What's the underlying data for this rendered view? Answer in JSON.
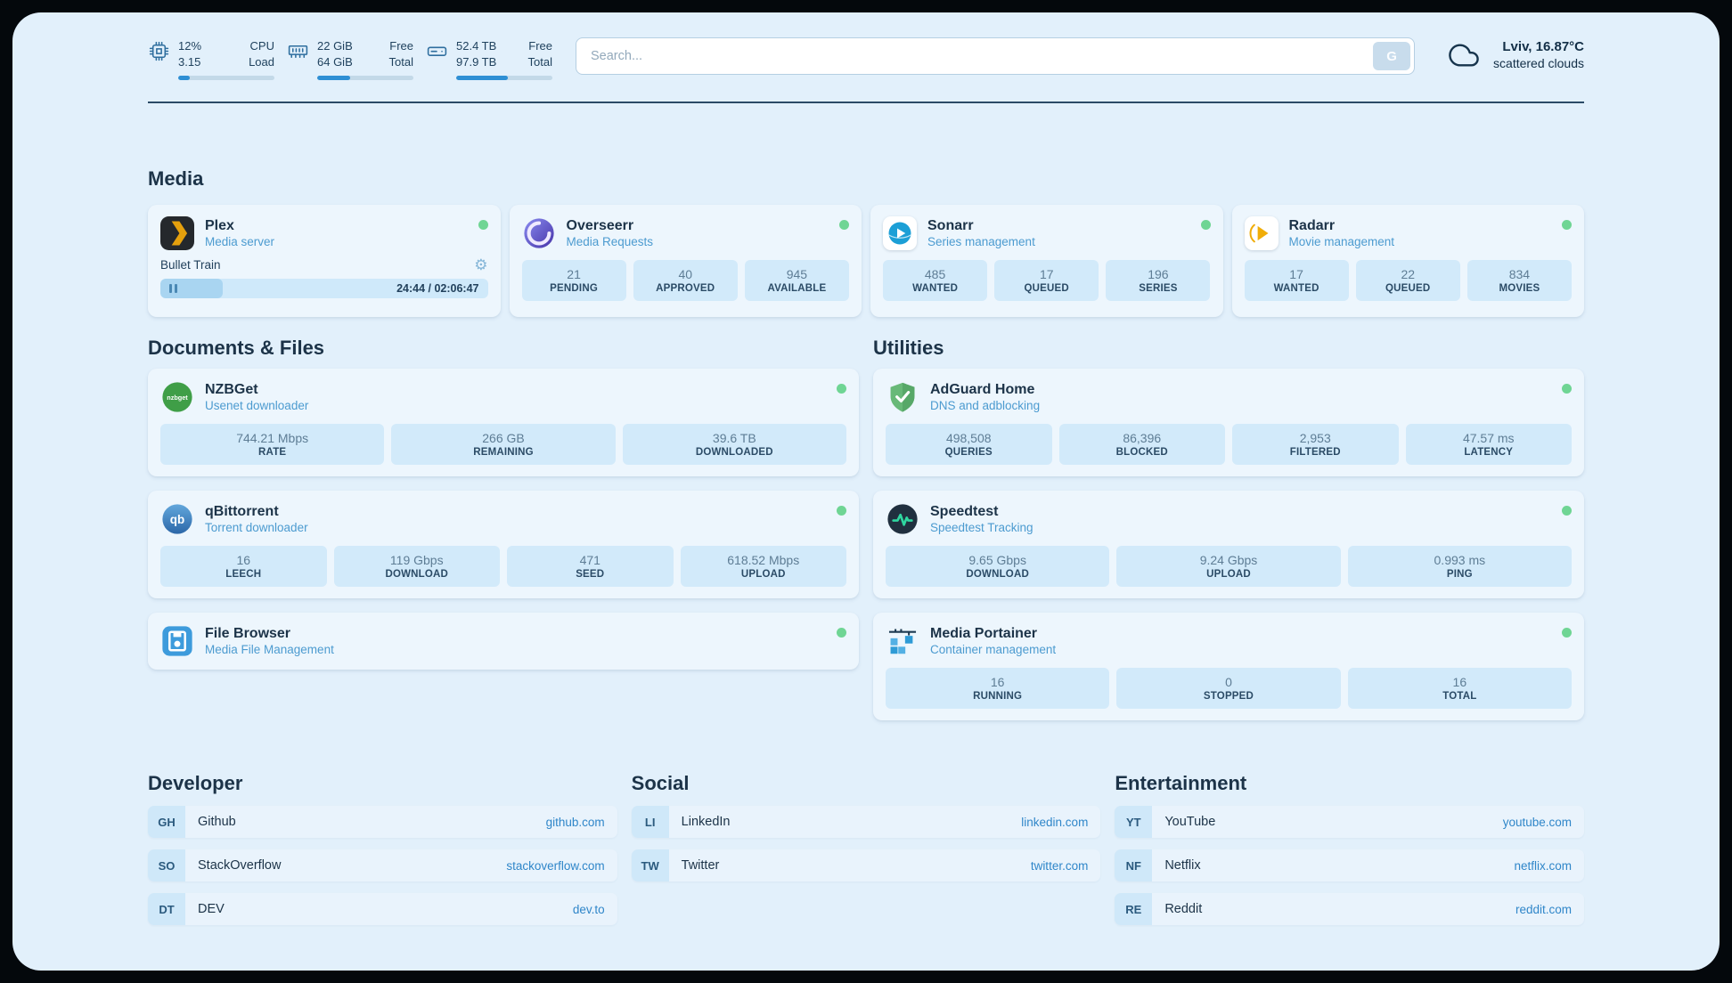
{
  "topbar": {
    "cpu": {
      "value_top": "12%",
      "value_bottom": "3.15",
      "label_top": "CPU",
      "label_bottom": "Load",
      "percent": 12
    },
    "ram": {
      "value_top": "22 GiB",
      "value_bottom": "64 GiB",
      "label_top": "Free",
      "label_bottom": "Total",
      "percent": 34
    },
    "disk": {
      "value_top": "52.4 TB",
      "value_bottom": "97.9 TB",
      "label_top": "Free",
      "label_bottom": "Total",
      "percent": 54
    },
    "search": {
      "placeholder": "Search...",
      "button_label": "G"
    },
    "weather": {
      "location": "Lviv, 16.87°C",
      "condition": "scattered clouds"
    }
  },
  "icons": {
    "gear": "⚙"
  },
  "colors": {
    "background": "#e2f0fb",
    "card": "#edf6fd",
    "stat_box": "#d2eafa",
    "accent": "#2e8fd4",
    "link": "#2f86c9",
    "status_online": "#6fd594",
    "heading": "#1c3348"
  },
  "sections": {
    "media": {
      "title": "Media",
      "plex": {
        "name": "Plex",
        "subtitle": "Media server",
        "now_playing": "Bullet Train",
        "time": "24:44 / 02:06:47",
        "progress_percent": 19
      },
      "overseerr": {
        "name": "Overseerr",
        "subtitle": "Media Requests",
        "stats": [
          {
            "value": "21",
            "label": "PENDING"
          },
          {
            "value": "40",
            "label": "APPROVED"
          },
          {
            "value": "945",
            "label": "AVAILABLE"
          }
        ]
      },
      "sonarr": {
        "name": "Sonarr",
        "subtitle": "Series management",
        "stats": [
          {
            "value": "485",
            "label": "WANTED"
          },
          {
            "value": "17",
            "label": "QUEUED"
          },
          {
            "value": "196",
            "label": "SERIES"
          }
        ]
      },
      "radarr": {
        "name": "Radarr",
        "subtitle": "Movie management",
        "stats": [
          {
            "value": "17",
            "label": "WANTED"
          },
          {
            "value": "22",
            "label": "QUEUED"
          },
          {
            "value": "834",
            "label": "MOVIES"
          }
        ]
      }
    },
    "documents": {
      "title": "Documents & Files",
      "nzbget": {
        "name": "NZBGet",
        "subtitle": "Usenet downloader",
        "stats": [
          {
            "value": "744.21 Mbps",
            "label": "RATE"
          },
          {
            "value": "266 GB",
            "label": "REMAINING"
          },
          {
            "value": "39.6 TB",
            "label": "DOWNLOADED"
          }
        ]
      },
      "qbittorrent": {
        "name": "qBittorrent",
        "subtitle": "Torrent downloader",
        "stats": [
          {
            "value": "16",
            "label": "LEECH"
          },
          {
            "value": "119 Gbps",
            "label": "DOWNLOAD"
          },
          {
            "value": "471",
            "label": "SEED"
          },
          {
            "value": "618.52 Mbps",
            "label": "UPLOAD"
          }
        ]
      },
      "filebrowser": {
        "name": "File Browser",
        "subtitle": "Media File Management"
      }
    },
    "utilities": {
      "title": "Utilities",
      "adguard": {
        "name": "AdGuard Home",
        "subtitle": "DNS and adblocking",
        "stats": [
          {
            "value": "498,508",
            "label": "QUERIES"
          },
          {
            "value": "86,396",
            "label": "BLOCKED"
          },
          {
            "value": "2,953",
            "label": "FILTERED"
          },
          {
            "value": "47.57 ms",
            "label": "LATENCY"
          }
        ]
      },
      "speedtest": {
        "name": "Speedtest",
        "subtitle": "Speedtest Tracking",
        "stats": [
          {
            "value": "9.65 Gbps",
            "label": "DOWNLOAD"
          },
          {
            "value": "9.24 Gbps",
            "label": "UPLOAD"
          },
          {
            "value": "0.993 ms",
            "label": "PING"
          }
        ]
      },
      "portainer": {
        "name": "Media Portainer",
        "subtitle": "Container management",
        "stats": [
          {
            "value": "16",
            "label": "RUNNING"
          },
          {
            "value": "0",
            "label": "STOPPED"
          },
          {
            "value": "16",
            "label": "TOTAL"
          }
        ]
      }
    },
    "bookmarks": [
      {
        "title": "Developer",
        "items": [
          {
            "abbr": "GH",
            "name": "Github",
            "url": "github.com"
          },
          {
            "abbr": "SO",
            "name": "StackOverflow",
            "url": "stackoverflow.com"
          },
          {
            "abbr": "DT",
            "name": "DEV",
            "url": "dev.to"
          }
        ]
      },
      {
        "title": "Social",
        "items": [
          {
            "abbr": "LI",
            "name": "LinkedIn",
            "url": "linkedin.com"
          },
          {
            "abbr": "TW",
            "name": "Twitter",
            "url": "twitter.com"
          }
        ]
      },
      {
        "title": "Entertainment",
        "items": [
          {
            "abbr": "YT",
            "name": "YouTube",
            "url": "youtube.com"
          },
          {
            "abbr": "NF",
            "name": "Netflix",
            "url": "netflix.com"
          },
          {
            "abbr": "RE",
            "name": "Reddit",
            "url": "reddit.com"
          }
        ]
      }
    ]
  }
}
